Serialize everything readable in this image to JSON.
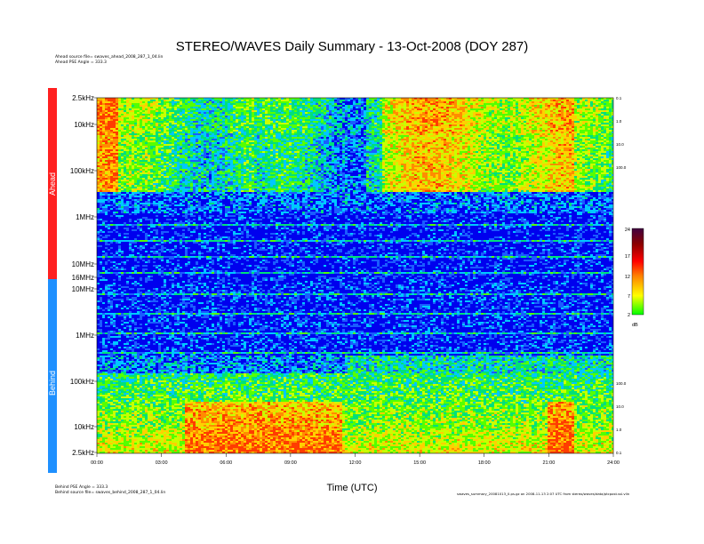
{
  "chart_data": {
    "type": "heatmap",
    "title": "STEREO/WAVES Daily Summary - 13-Oct-2008 (DOY 287)",
    "xlabel": "Time (UTC)",
    "x_ticks": [
      "00:00",
      "03:00",
      "06:00",
      "09:00",
      "12:00",
      "15:00",
      "18:00",
      "21:00",
      "24:00"
    ],
    "xlim_hours": [
      0,
      24
    ],
    "panels": [
      {
        "name": "Ahead",
        "y_ticks": [
          "2.5kHz",
          "10kHz",
          "100kHz",
          "1MHz",
          "10MHz",
          "16MHz"
        ],
        "y_scale": "log",
        "right_ticks": [
          "0.1",
          "1.0",
          "10.0",
          "100.0"
        ],
        "color": "#ff2020"
      },
      {
        "name": "Behind",
        "y_ticks": [
          "10MHz",
          "1MHz",
          "100kHz",
          "10kHz",
          "2.5kHz"
        ],
        "y_scale": "log",
        "right_ticks": [
          "100.0",
          "10.0",
          "1.0",
          "0.1"
        ],
        "color": "#1e90ff"
      }
    ],
    "colorbar": {
      "ticks": [
        "24",
        "17",
        "12",
        "7",
        "2"
      ],
      "range": [
        2,
        24
      ],
      "unit": "dB",
      "colors": [
        "#00ff00",
        "#ffff00",
        "#ff8000",
        "#ff0000",
        "#8b0000",
        "#400040"
      ]
    },
    "background_color": "#0000ee",
    "grid": false,
    "legend": "none"
  },
  "meta": {
    "ahead_source": "Ahead source file= swaves_ahead_2008_287_1_04.lin",
    "ahead_psd": "Ahead PSE Angle = 333.3",
    "behind_psd": "Behind PSE Angle = 333.3",
    "behind_source": "Behind source file= swaves_behind_2008_287_1_04.lin",
    "footer_right": "swaves_summary_20081013_0.ps.gz on 2008-11-13 2:07 UTC from stereo/waves/data/ptcpost.ssl.vlin"
  }
}
